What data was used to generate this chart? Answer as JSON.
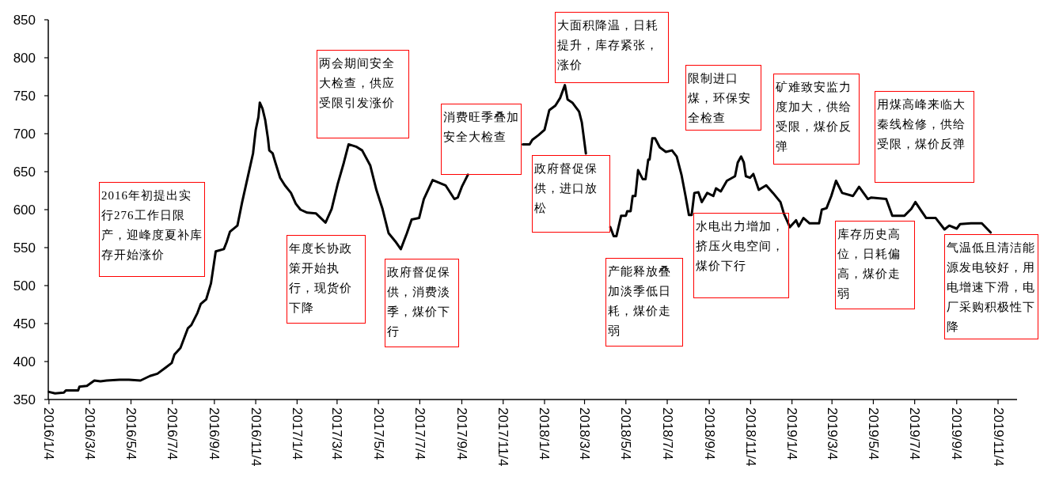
{
  "chart_data": {
    "type": "line",
    "xlim": [
      "2016-01-03",
      "2019-12-02"
    ],
    "ylim": [
      350,
      850
    ],
    "yticks": [
      350,
      400,
      450,
      500,
      550,
      600,
      650,
      700,
      750,
      800,
      850
    ],
    "xticks": [
      {
        "value": "2016-01-04",
        "label": "2016/1/4"
      },
      {
        "value": "2016-03-04",
        "label": "2016/3/4"
      },
      {
        "value": "2016-05-04",
        "label": "2016/5/4"
      },
      {
        "value": "2016-07-04",
        "label": "2016/7/4"
      },
      {
        "value": "2016-09-04",
        "label": "2016/9/4"
      },
      {
        "value": "2016-11-04",
        "label": "2016/11/4"
      },
      {
        "value": "2017-01-04",
        "label": "2017/1/4"
      },
      {
        "value": "2017-03-04",
        "label": "2017/3/4"
      },
      {
        "value": "2017-05-04",
        "label": "2017/5/4"
      },
      {
        "value": "2017-07-04",
        "label": "2017/7/4"
      },
      {
        "value": "2017-09-04",
        "label": "2017/9/4"
      },
      {
        "value": "2017-11-04",
        "label": "2017/11/4"
      },
      {
        "value": "2018-01-04",
        "label": "2018/1/4"
      },
      {
        "value": "2018-03-04",
        "label": "2018/3/4"
      },
      {
        "value": "2018-05-04",
        "label": "2018/5/4"
      },
      {
        "value": "2018-07-04",
        "label": "2018/7/4"
      },
      {
        "value": "2018-09-04",
        "label": "2018/9/4"
      },
      {
        "value": "2018-11-04",
        "label": "2018/11/4"
      },
      {
        "value": "2019-01-04",
        "label": "2019/1/4"
      },
      {
        "value": "2019-03-04",
        "label": "2019/3/4"
      },
      {
        "value": "2019-05-04",
        "label": "2019/5/4"
      },
      {
        "value": "2019-07-04",
        "label": "2019/7/4"
      },
      {
        "value": "2019-09-04",
        "label": "2019/9/4"
      },
      {
        "value": "2019-11-04",
        "label": "2019/11/4"
      }
    ],
    "series": [
      {
        "color": "#000000",
        "x": [
          "2016-01-04",
          "2016-01-13",
          "2016-01-26",
          "2016-01-29",
          "2016-02-16",
          "2016-02-18",
          "2016-02-29",
          "2016-03-11",
          "2016-03-20",
          "2016-03-29",
          "2016-04-17",
          "2016-05-01",
          "2016-05-18",
          "2016-06-01",
          "2016-06-12",
          "2016-06-24",
          "2016-07-03",
          "2016-07-07",
          "2016-07-16",
          "2016-07-27",
          "2016-08-01",
          "2016-08-10",
          "2016-08-15",
          "2016-08-23",
          "2016-08-30",
          "2016-09-06",
          "2016-09-18",
          "2016-09-22",
          "2016-09-27",
          "2016-10-08",
          "2016-10-15",
          "2016-10-24",
          "2016-10-31",
          "2016-11-04",
          "2016-11-08",
          "2016-11-10",
          "2016-11-14",
          "2016-11-18",
          "2016-11-22",
          "2016-11-24",
          "2016-11-29",
          "2016-12-03",
          "2016-12-10",
          "2016-12-17",
          "2016-12-26",
          "2017-01-02",
          "2017-01-09",
          "2017-01-19",
          "2017-02-01",
          "2017-02-15",
          "2017-02-24",
          "2017-03-05",
          "2017-03-14",
          "2017-03-21",
          "2017-04-01",
          "2017-04-10",
          "2017-04-22",
          "2017-05-01",
          "2017-05-10",
          "2017-05-19",
          "2017-05-30",
          "2017-06-06",
          "2017-06-15",
          "2017-06-22",
          "2017-07-03",
          "2017-07-10",
          "2017-07-23",
          "2017-08-11",
          "2017-08-24",
          "2017-08-29",
          "2017-09-04",
          "2017-09-13",
          "2017-12-03",
          "2017-12-13",
          "2017-12-17",
          "2017-12-26",
          "2018-01-04",
          "2018-01-11",
          "2018-01-20",
          "2018-01-27",
          "2018-02-03",
          "2018-02-07",
          "2018-02-14",
          "2018-02-24",
          "2018-02-28",
          "2018-03-06",
          "2018-04-11",
          "2018-04-16",
          "2018-04-20",
          "2018-04-27",
          "2018-05-04",
          "2018-05-06",
          "2018-05-11",
          "2018-05-14",
          "2018-05-18",
          "2018-05-22",
          "2018-05-29",
          "2018-06-02",
          "2018-06-06",
          "2018-06-08",
          "2018-06-12",
          "2018-06-16",
          "2018-06-23",
          "2018-07-02",
          "2018-07-11",
          "2018-07-18",
          "2018-07-25",
          "2018-07-31",
          "2018-08-05",
          "2018-08-09",
          "2018-08-13",
          "2018-08-19",
          "2018-08-24",
          "2018-09-01",
          "2018-09-10",
          "2018-09-14",
          "2018-09-21",
          "2018-09-30",
          "2018-10-12",
          "2018-10-16",
          "2018-10-21",
          "2018-10-25",
          "2018-10-28",
          "2018-11-03",
          "2018-11-08",
          "2018-11-16",
          "2018-11-27",
          "2018-12-07",
          "2018-12-18",
          "2018-12-23",
          "2019-01-01",
          "2019-01-10",
          "2019-01-14",
          "2019-01-21",
          "2019-01-30",
          "2019-02-13",
          "2019-02-17",
          "2019-02-24",
          "2019-03-03",
          "2019-03-10",
          "2019-03-19",
          "2019-04-04",
          "2019-04-13",
          "2019-04-26",
          "2019-05-01",
          "2019-05-23",
          "2019-06-01",
          "2019-06-19",
          "2019-06-29",
          "2019-07-05",
          "2019-07-14",
          "2019-07-21",
          "2019-08-04",
          "2019-08-17",
          "2019-08-24",
          "2019-09-04",
          "2019-09-09",
          "2019-09-25",
          "2019-10-11",
          "2019-10-24"
        ],
        "values": [
          360,
          358,
          359,
          362,
          362,
          367,
          368,
          375,
          374,
          375,
          376,
          376,
          375,
          381,
          384,
          392,
          398,
          409,
          418,
          444,
          448,
          464,
          476,
          482,
          503,
          545,
          548,
          557,
          571,
          579,
          610,
          646,
          674,
          705,
          722,
          741,
          733,
          718,
          694,
          678,
          674,
          662,
          642,
          632,
          622,
          608,
          600,
          596,
          595,
          583,
          601,
          634,
          662,
          686,
          683,
          678,
          658,
          626,
          601,
          569,
          557,
          548,
          569,
          587,
          589,
          614,
          639,
          632,
          614,
          616,
          630,
          646,
          686,
          686,
          692,
          698,
          705,
          731,
          737,
          747,
          764,
          745,
          741,
          729,
          715,
          674,
          577,
          565,
          565,
          592,
          592,
          598,
          598,
          618,
          618,
          652,
          640,
          640,
          666,
          666,
          694,
          694,
          682,
          676,
          678,
          670,
          646,
          618,
          593,
          593,
          622,
          623,
          610,
          622,
          618,
          628,
          624,
          638,
          644,
          662,
          670,
          662,
          644,
          642,
          647,
          626,
          632,
          622,
          610,
          595,
          577,
          586,
          578,
          589,
          582,
          582,
          600,
          602,
          618,
          638,
          622,
          618,
          630,
          614,
          616,
          614,
          592,
          592,
          601,
          610,
          598,
          589,
          589,
          574,
          579,
          575,
          581,
          582,
          582,
          570
        ]
      }
    ],
    "annotations": [
      "2016年初提出实行276工作日限产，迎峰度夏补库存开始涨价",
      "年度长协政策开始执行，现货价下降",
      "两会期间安全大检查，供应受限引发涨价",
      "政府督促保供，消费淡季，煤价下行",
      "消费旺季叠加安全大检查",
      "大面积降温，日耗提升，库存紧张，涨价",
      "政府督促保供，进口放松",
      "产能释放叠加淡季低日耗，煤价走弱",
      "限制进口煤，环保安全检查",
      "矿难致安监力度加大，供给受限，煤价反弹",
      "水电出力增加，挤压火电空间，煤价下行",
      "库存历史高位，日耗偏高，煤价走弱",
      "用煤高峰来临大秦线检修，供给受限，煤价反弹",
      "气温低且清洁能源发电较好，用电增速下滑，电厂采购积极性下降"
    ]
  }
}
